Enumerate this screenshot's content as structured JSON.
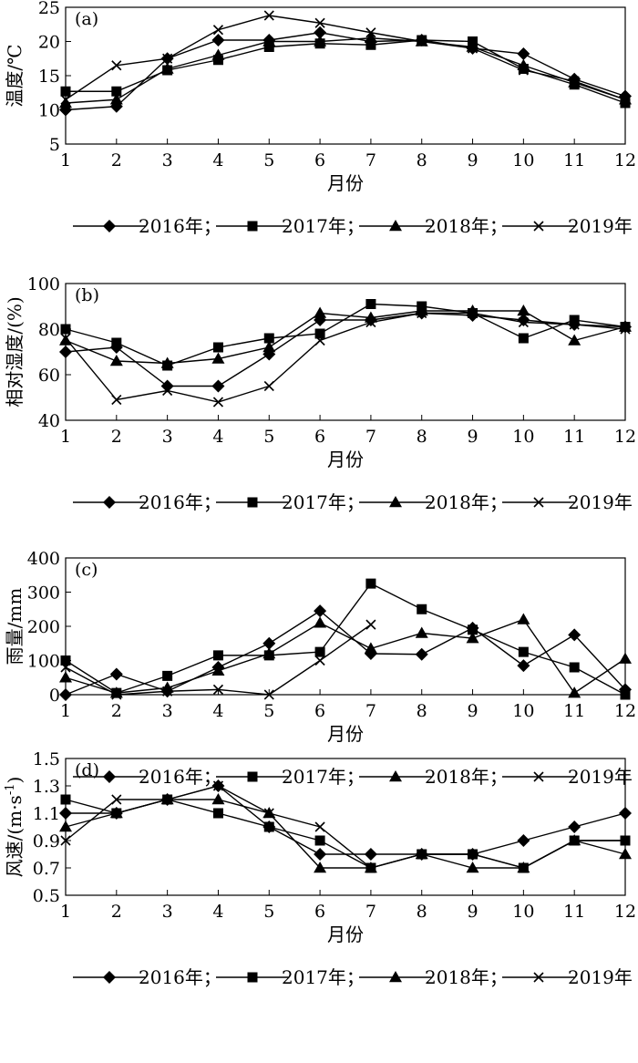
{
  "legend_text": {
    "sep": "；"
  },
  "chart_data": [
    {
      "type": "line",
      "panel_label": "(a)",
      "xlabel": "月份",
      "ylabel": "温度/℃",
      "ylim": [
        5,
        25
      ],
      "yticks": [
        5,
        10,
        15,
        20,
        25
      ],
      "ytick_labels": [
        "5",
        "10",
        "15",
        "20",
        "25"
      ],
      "x": [
        1,
        2,
        3,
        4,
        5,
        6,
        7,
        8,
        9,
        10,
        11,
        12
      ],
      "xtick_labels": [
        "1",
        "2",
        "3",
        "4",
        "5",
        "6",
        "7",
        "8",
        "9",
        "10",
        "11",
        "12"
      ],
      "grid": false,
      "legend_position": "bottom",
      "series": [
        {
          "name": "2016年",
          "marker": "diamond",
          "values": [
            10.0,
            10.5,
            17.5,
            20.2,
            20.2,
            21.3,
            20.0,
            20.2,
            19.0,
            18.2,
            14.5,
            12.0
          ]
        },
        {
          "name": "2017年",
          "marker": "square",
          "values": [
            12.7,
            12.7,
            15.8,
            17.3,
            19.2,
            19.7,
            19.5,
            20.2,
            20.0,
            16.0,
            13.7,
            11.0
          ]
        },
        {
          "name": "2018年",
          "marker": "triangle",
          "values": [
            11.0,
            11.5,
            16.0,
            18.0,
            20.0,
            20.0,
            20.5,
            20.0,
            19.2,
            16.5,
            14.0,
            11.5
          ]
        },
        {
          "name": "2019年",
          "marker": "cross",
          "values": [
            11.5,
            16.5,
            17.5,
            21.7,
            23.8,
            22.7,
            21.3,
            20.0,
            19.0,
            15.8,
            14.2,
            11.5
          ]
        }
      ]
    },
    {
      "type": "line",
      "panel_label": "(b)",
      "xlabel": "月份",
      "ylabel": "相对湿度/(%)",
      "ylim": [
        40,
        100
      ],
      "yticks": [
        40,
        60,
        80,
        100
      ],
      "ytick_labels": [
        "40",
        "60",
        "80",
        "100"
      ],
      "x": [
        1,
        2,
        3,
        4,
        5,
        6,
        7,
        8,
        9,
        10,
        11,
        12
      ],
      "xtick_labels": [
        "1",
        "2",
        "3",
        "4",
        "5",
        "6",
        "7",
        "8",
        "9",
        "10",
        "11",
        "12"
      ],
      "grid": false,
      "legend_position": "bottom",
      "series": [
        {
          "name": "2016年",
          "marker": "diamond",
          "values": [
            70,
            72,
            55,
            55,
            69,
            84,
            84,
            87,
            86,
            84,
            82,
            81
          ]
        },
        {
          "name": "2017年",
          "marker": "square",
          "values": [
            80,
            74,
            64,
            72,
            76,
            78,
            91,
            90,
            87,
            76,
            84,
            81
          ]
        },
        {
          "name": "2018年",
          "marker": "triangle",
          "values": [
            75,
            66,
            65,
            67,
            72,
            87,
            85,
            88,
            88,
            88,
            75,
            81
          ]
        },
        {
          "name": "2019年",
          "marker": "cross",
          "values": [
            76,
            49,
            53,
            48,
            55,
            75,
            83,
            87,
            87,
            83,
            82,
            80
          ]
        }
      ]
    },
    {
      "type": "line",
      "panel_label": "(c)",
      "xlabel": "月份",
      "ylabel": "雨量/mm",
      "ylim": [
        0,
        400
      ],
      "yticks": [
        0,
        100,
        200,
        300,
        400
      ],
      "ytick_labels": [
        "0",
        "100",
        "200",
        "300",
        "400"
      ],
      "x": [
        1,
        2,
        3,
        4,
        5,
        6,
        7,
        8,
        9,
        10,
        11,
        12
      ],
      "xtick_labels": [
        "1",
        "2",
        "3",
        "4",
        "5",
        "6",
        "7",
        "8",
        "9",
        "10",
        "11",
        "12"
      ],
      "grid": false,
      "legend_position": "bottom",
      "series": [
        {
          "name": "2016年",
          "marker": "diamond",
          "values": [
            0,
            60,
            10,
            80,
            150,
            245,
            120,
            118,
            195,
            85,
            175,
            15
          ]
        },
        {
          "name": "2017年",
          "marker": "square",
          "values": [
            100,
            5,
            55,
            115,
            115,
            125,
            325,
            250,
            190,
            125,
            80,
            0
          ]
        },
        {
          "name": "2018年",
          "marker": "triangle",
          "values": [
            50,
            5,
            20,
            70,
            120,
            210,
            135,
            180,
            165,
            220,
            5,
            105
          ]
        },
        {
          "name": "2019年",
          "marker": "cross",
          "values": [
            80,
            0,
            10,
            15,
            0,
            100,
            205,
            null,
            null,
            null,
            null,
            null
          ]
        }
      ]
    },
    {
      "type": "line",
      "panel_label": "(d)",
      "xlabel": "月份",
      "ylabel": "风速/(m·s",
      "ylabel_sup": "-1",
      "ylabel_end": ")",
      "ylim": [
        0.5,
        1.5
      ],
      "yticks": [
        0.5,
        0.7,
        0.9,
        1.1,
        1.3,
        1.5
      ],
      "ytick_labels": [
        "0.5",
        "0.7",
        "0.9",
        "1.1",
        "1.3",
        "1.5"
      ],
      "x": [
        1,
        2,
        3,
        4,
        5,
        6,
        7,
        8,
        9,
        10,
        11,
        12
      ],
      "xtick_labels": [
        "1",
        "2",
        "3",
        "4",
        "5",
        "6",
        "7",
        "8",
        "9",
        "10",
        "11",
        "12"
      ],
      "grid": false,
      "legend_position": "bottom",
      "series": [
        {
          "name": "2016年",
          "marker": "diamond",
          "values": [
            1.1,
            1.1,
            1.2,
            1.3,
            1.0,
            0.8,
            0.8,
            0.8,
            0.8,
            0.9,
            1.0,
            1.1
          ]
        },
        {
          "name": "2017年",
          "marker": "square",
          "values": [
            1.2,
            1.1,
            1.2,
            1.1,
            1.0,
            0.9,
            0.7,
            0.8,
            0.8,
            0.7,
            0.9,
            0.9
          ]
        },
        {
          "name": "2018年",
          "marker": "triangle",
          "values": [
            1.0,
            1.1,
            1.2,
            1.2,
            1.1,
            0.7,
            0.7,
            0.8,
            0.7,
            0.7,
            0.9,
            0.8
          ]
        },
        {
          "name": "2019年",
          "marker": "cross",
          "values": [
            0.9,
            1.2,
            1.2,
            1.3,
            1.1,
            1.0,
            0.7,
            0.8,
            0.8,
            0.7,
            0.9,
            0.9
          ]
        }
      ]
    }
  ]
}
